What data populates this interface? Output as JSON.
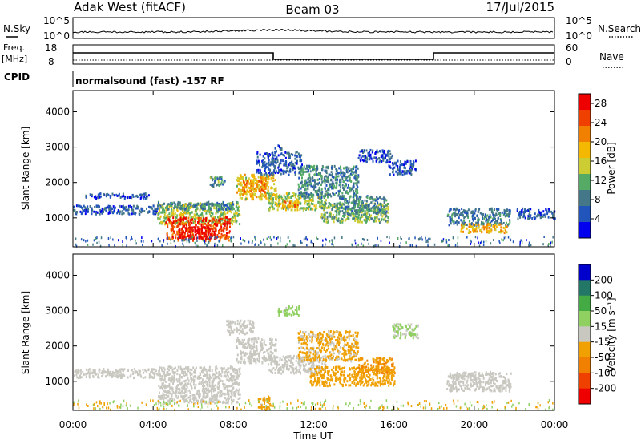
{
  "header": {
    "radar": "Adak West (fitACF)",
    "beam": "Beam 03",
    "date": "17/Jul/2015"
  },
  "noise_panel": {
    "left_label": "N.Sky",
    "right_label": "N.Search",
    "left_ticks": [
      "10^5",
      "10^0"
    ],
    "right_ticks": [
      "10^5",
      "10^0"
    ]
  },
  "freq_panel": {
    "left_label_1": "Freq.",
    "left_label_2": "[MHz]",
    "left_ticks": [
      "18",
      "8"
    ],
    "right_label": "Nave",
    "right_ticks": [
      "60",
      "0"
    ]
  },
  "cpid": {
    "label": "CPID",
    "text": "normalsound (fast) -157 RF"
  },
  "colors": {
    "power_scale": [
      "#0000ee",
      "#2255bb",
      "#447788",
      "#55aa66",
      "#cccc33",
      "#f5b800",
      "#f28000",
      "#f04000",
      "#ee0000"
    ],
    "velocity_scale": [
      "#ee0000",
      "#f04000",
      "#f28000",
      "#f0a000",
      "#c8c8c0",
      "#90d060",
      "#44aa44",
      "#227766",
      "#0000cc"
    ]
  },
  "chart_data": [
    {
      "type": "heatmap",
      "name": "power",
      "ylabel": "Slant Range [km]",
      "yticks": [
        "1000",
        "2000",
        "3000",
        "4000"
      ],
      "ylim": [
        180,
        4600
      ],
      "colorbar_label": "Power [dB]",
      "colorbar_ticks": [
        "4",
        "8",
        "12",
        "16",
        "20",
        "24",
        "28"
      ],
      "colorbar_range": [
        0,
        30
      ],
      "regions": [
        {
          "t0": 0.0,
          "t1": 4.3,
          "r0": 1130,
          "r1": 1380,
          "v": 6
        },
        {
          "t0": 0.6,
          "t1": 3.8,
          "r0": 1580,
          "r1": 1720,
          "v": 5
        },
        {
          "t0": 4.2,
          "t1": 8.3,
          "r0": 850,
          "r1": 1450,
          "v": 14
        },
        {
          "t0": 4.6,
          "t1": 7.8,
          "r0": 380,
          "r1": 1050,
          "v": 25
        },
        {
          "t0": 5.2,
          "t1": 7.1,
          "r0": 420,
          "r1": 780,
          "v": 29
        },
        {
          "t0": 4.1,
          "t1": 8.2,
          "r0": 1250,
          "r1": 1480,
          "v": 9
        },
        {
          "t0": 8.1,
          "t1": 10.1,
          "r0": 1550,
          "r1": 2250,
          "v": 17
        },
        {
          "t0": 8.4,
          "t1": 9.6,
          "r0": 1750,
          "r1": 2100,
          "v": 22
        },
        {
          "t0": 9.1,
          "t1": 11.4,
          "r0": 2250,
          "r1": 2900,
          "v": 6
        },
        {
          "t0": 9.7,
          "t1": 12.6,
          "r0": 1250,
          "r1": 1750,
          "v": 14
        },
        {
          "t0": 10.1,
          "t1": 11.2,
          "r0": 1320,
          "r1": 1500,
          "v": 20
        },
        {
          "t0": 11.2,
          "t1": 14.2,
          "r0": 1600,
          "r1": 2500,
          "v": 9
        },
        {
          "t0": 12.3,
          "t1": 15.7,
          "r0": 900,
          "r1": 1450,
          "v": 12
        },
        {
          "t0": 13.2,
          "t1": 15.6,
          "r0": 1150,
          "r1": 1650,
          "v": 9
        },
        {
          "t0": 14.2,
          "t1": 15.9,
          "r0": 2600,
          "r1": 2950,
          "v": 5
        },
        {
          "t0": 15.7,
          "t1": 17.1,
          "r0": 2250,
          "r1": 2650,
          "v": 5
        },
        {
          "t0": 18.6,
          "t1": 21.8,
          "r0": 820,
          "r1": 1300,
          "v": 8
        },
        {
          "t0": 19.3,
          "t1": 21.6,
          "r0": 600,
          "r1": 860,
          "v": 19
        },
        {
          "t0": 22.1,
          "t1": 24.0,
          "r0": 1000,
          "r1": 1300,
          "v": 5
        },
        {
          "t0": 6.8,
          "t1": 7.6,
          "r0": 1900,
          "r1": 2200,
          "v": 10
        },
        {
          "t0": 10.0,
          "t1": 10.4,
          "r0": 2900,
          "r1": 3100,
          "v": 5
        }
      ]
    },
    {
      "type": "heatmap",
      "name": "velocity",
      "ylabel": "Slant Range [km]",
      "yticks": [
        "1000",
        "2000",
        "3000",
        "4000"
      ],
      "ylim": [
        180,
        4600
      ],
      "colorbar_label": "Velocity [m s⁻¹]",
      "colorbar_ticks": [
        "200",
        "100",
        "50",
        "15",
        "-15",
        "-50",
        "-100",
        "-200"
      ],
      "colorbar_range": [
        -250,
        250
      ],
      "xlabel": "Time UT",
      "xticks": [
        "00:00",
        "04:00",
        "08:00",
        "12:00",
        "16:00",
        "20:00",
        "00:00"
      ],
      "xlim": [
        0,
        24
      ],
      "regions": [
        {
          "t0": 0.0,
          "t1": 4.3,
          "r0": 1130,
          "r1": 1380,
          "v": 0
        },
        {
          "t0": 4.2,
          "t1": 8.3,
          "r0": 400,
          "r1": 1450,
          "v": 0
        },
        {
          "t0": 8.1,
          "t1": 10.1,
          "r0": 1550,
          "r1": 2250,
          "v": 0
        },
        {
          "t0": 7.6,
          "t1": 9.0,
          "r0": 2350,
          "r1": 2750,
          "v": 0
        },
        {
          "t0": 9.7,
          "t1": 12.6,
          "r0": 1250,
          "r1": 1750,
          "v": 0
        },
        {
          "t0": 11.2,
          "t1": 14.2,
          "r0": 1600,
          "r1": 2450,
          "v": -35
        },
        {
          "t0": 11.8,
          "t1": 16.0,
          "r0": 900,
          "r1": 1450,
          "v": -60
        },
        {
          "t0": 14.2,
          "t1": 16.0,
          "r0": 1250,
          "r1": 1700,
          "v": -80
        },
        {
          "t0": 10.2,
          "t1": 11.3,
          "r0": 2900,
          "r1": 3150,
          "v": 40
        },
        {
          "t0": 15.9,
          "t1": 17.2,
          "r0": 2250,
          "r1": 2650,
          "v": 30
        },
        {
          "t0": 18.6,
          "t1": 21.8,
          "r0": 750,
          "r1": 1300,
          "v": 0
        },
        {
          "t0": 9.2,
          "t1": 9.8,
          "r0": 200,
          "r1": 600,
          "v": -40
        }
      ]
    }
  ]
}
